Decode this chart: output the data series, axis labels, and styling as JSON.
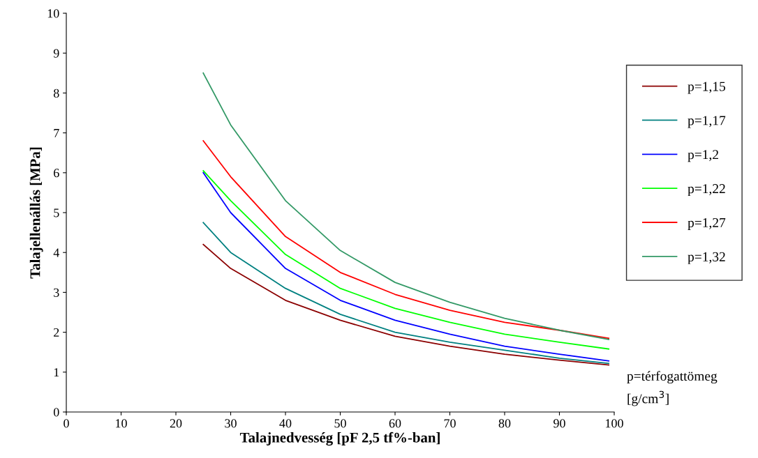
{
  "chart_data": {
    "type": "line",
    "xlabel": "Talajnedvesség [pF 2,5 tf%-ban]",
    "ylabel": "Talajellenállás [MPa]",
    "x": [
      25,
      30,
      40,
      50,
      60,
      70,
      80,
      90,
      99
    ],
    "series": [
      {
        "name": "p=1,15",
        "color": "#8b0000",
        "values": [
          4.2,
          3.6,
          2.8,
          2.3,
          1.9,
          1.65,
          1.45,
          1.3,
          1.18
        ]
      },
      {
        "name": "p=1,17",
        "color": "#008080",
        "values": [
          4.75,
          4.0,
          3.1,
          2.45,
          2.0,
          1.75,
          1.55,
          1.35,
          1.22
        ]
      },
      {
        "name": "p=1,2",
        "color": "#0000ff",
        "values": [
          6.0,
          5.0,
          3.6,
          2.8,
          2.3,
          1.95,
          1.65,
          1.45,
          1.28
        ]
      },
      {
        "name": "p=1,22",
        "color": "#00ff00",
        "values": [
          6.05,
          5.3,
          3.95,
          3.1,
          2.6,
          2.25,
          1.95,
          1.75,
          1.58
        ]
      },
      {
        "name": "p=1,27",
        "color": "#ff0000",
        "values": [
          6.8,
          5.9,
          4.4,
          3.5,
          2.95,
          2.55,
          2.25,
          2.05,
          1.85
        ]
      },
      {
        "name": "p=1,32",
        "color": "#339966",
        "values": [
          8.5,
          7.2,
          5.3,
          4.05,
          3.25,
          2.75,
          2.35,
          2.05,
          1.82
        ]
      }
    ],
    "xlim": [
      0,
      100
    ],
    "xticks": [
      0,
      10,
      20,
      30,
      40,
      50,
      60,
      70,
      80,
      90,
      100
    ],
    "ylim": [
      0,
      10
    ],
    "yticks": [
      0,
      1,
      2,
      3,
      4,
      5,
      6,
      7,
      8,
      9,
      10
    ],
    "grid": false,
    "legend": "right",
    "marker": "none",
    "line_style": "solid",
    "annotations": [
      "p=térfogattömeg [g/cm$^{3}$]"
    ]
  }
}
